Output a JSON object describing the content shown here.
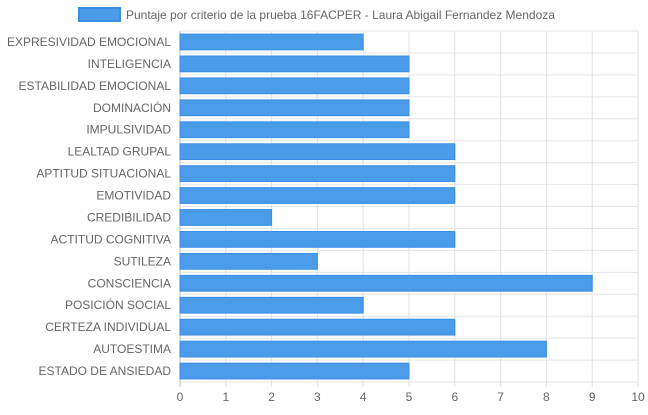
{
  "chart_data": {
    "type": "bar",
    "orientation": "horizontal",
    "legend_position": "top",
    "grid": true,
    "categories": [
      "EXPRESIVIDAD EMOCIONAL",
      "INTELIGENCIA",
      "ESTABILIDAD EMOCIONAL",
      "DOMINACIÓN",
      "IMPULSIVIDAD",
      "LEALTAD GRUPAL",
      "APTITUD SITUACIONAL",
      "EMOTIVIDAD",
      "CREDIBILIDAD",
      "ACTITUD COGNITIVA",
      "SUTILEZA",
      "CONSCIENCIA",
      "POSICIÓN SOCIAL",
      "CERTEZA INDIVIDUAL",
      "AUTOESTIMA",
      "ESTADO DE ANSIEDAD"
    ],
    "series": [
      {
        "name": "Puntaje por criterio de la prueba 16FACPER - Laura Abigail Fernandez Mendoza",
        "color": "#4a9be8",
        "border_color": "#3a8ee6",
        "values": [
          4,
          5,
          5,
          5,
          5,
          6,
          6,
          6,
          2,
          6,
          3,
          9,
          4,
          6,
          8,
          5
        ]
      }
    ],
    "xlim": [
      0,
      10
    ],
    "x_ticks": [
      "0",
      "1",
      "2",
      "3",
      "4",
      "5",
      "6",
      "7",
      "8",
      "9",
      "10"
    ]
  }
}
